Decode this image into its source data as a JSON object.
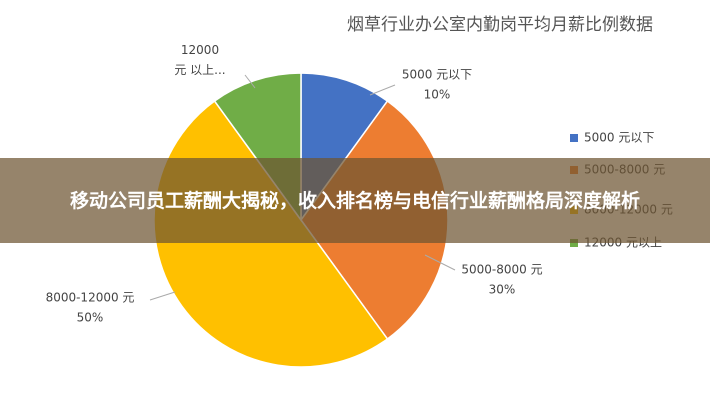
{
  "chart_data": {
    "type": "pie",
    "title": "烟草行业办公室内勤岗平均月薪比例数据",
    "banner_title": "移动公司员工薪酬大揭秘，收入排名榜与电信行业薪酬格局深度解析",
    "categories": [
      "5000 元以下",
      "5000-8000 元",
      "8000-12000 元",
      "12000 元以上"
    ],
    "slice_labels": [
      "5000 元以下",
      "5000-8000 元",
      "8000-12000 元",
      "12000 元 以上..."
    ],
    "values": [
      10,
      30,
      50,
      10
    ],
    "value_labels": [
      "10%",
      "30%",
      "50%",
      null
    ],
    "colors": [
      "#4472c4",
      "#ed7d31",
      "#ffc000",
      "#70ad47"
    ],
    "legend": "right"
  }
}
